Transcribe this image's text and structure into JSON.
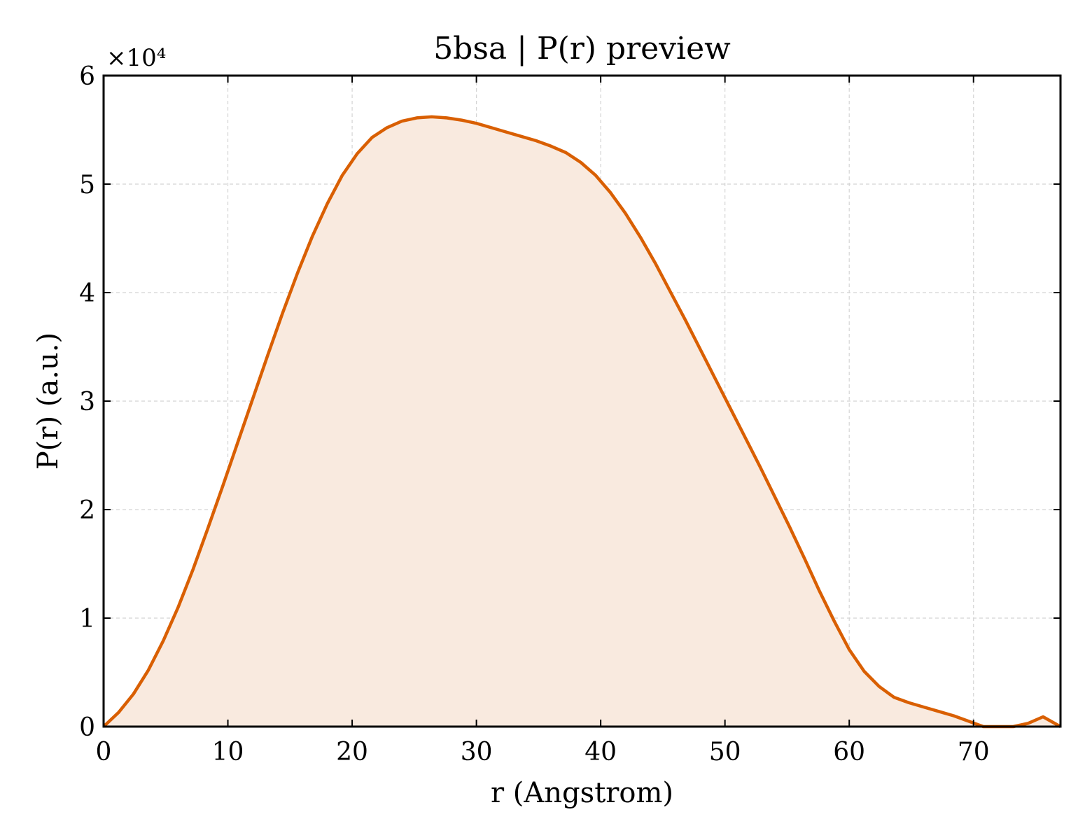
{
  "chart_data": {
    "type": "area",
    "title": "5bsa | P(r) preview",
    "xlabel": "r (Angstrom)",
    "ylabel": "P(r) (a.u.)",
    "y_offset_label": "×10⁴",
    "xlim": [
      0,
      77
    ],
    "ylim": [
      0,
      60000
    ],
    "x_ticks": [
      0,
      10,
      20,
      30,
      40,
      50,
      60,
      70
    ],
    "y_ticks": [
      0,
      10000,
      20000,
      30000,
      40000,
      50000,
      60000
    ],
    "y_tick_labels": [
      "0",
      "1",
      "2",
      "3",
      "4",
      "5",
      "6"
    ],
    "grid": true,
    "line_color": "#d95f02",
    "fill_color": "#f9eadf",
    "series": [
      {
        "x": [
          0,
          1.2,
          2.4,
          3.6,
          4.8,
          6.0,
          7.2,
          8.4,
          9.6,
          10.8,
          12.0,
          13.2,
          14.4,
          15.6,
          16.8,
          18.0,
          19.2,
          20.4,
          21.6,
          22.8,
          24.0,
          25.2,
          26.4,
          27.6,
          28.8,
          30.0,
          31.2,
          32.4,
          33.6,
          34.8,
          36.0,
          37.2,
          38.4,
          39.6,
          40.8,
          42.0,
          43.2,
          44.4,
          45.6,
          46.8,
          48.0,
          49.2,
          50.4,
          51.6,
          52.8,
          54.0,
          55.2,
          56.4,
          57.6,
          58.8,
          60.0,
          61.2,
          62.4,
          63.6,
          64.8,
          66.0,
          67.2,
          68.4,
          69.6,
          70.8,
          72.0,
          73.2,
          74.4,
          75.6,
          77.0
        ],
        "y": [
          0,
          1300,
          3000,
          5200,
          7900,
          11000,
          14500,
          18300,
          22200,
          26200,
          30200,
          34200,
          38100,
          41800,
          45200,
          48200,
          50800,
          52800,
          54300,
          55200,
          55800,
          56100,
          56200,
          56100,
          55900,
          55600,
          55200,
          54800,
          54400,
          54000,
          53500,
          52900,
          52000,
          50800,
          49200,
          47300,
          45100,
          42700,
          40100,
          37500,
          34800,
          32100,
          29400,
          26700,
          24000,
          21200,
          18400,
          15500,
          12500,
          9700,
          7100,
          5100,
          3700,
          2700,
          2200,
          1800,
          1400,
          1000,
          500,
          0,
          -200,
          -100,
          300,
          900,
          0
        ]
      }
    ]
  }
}
